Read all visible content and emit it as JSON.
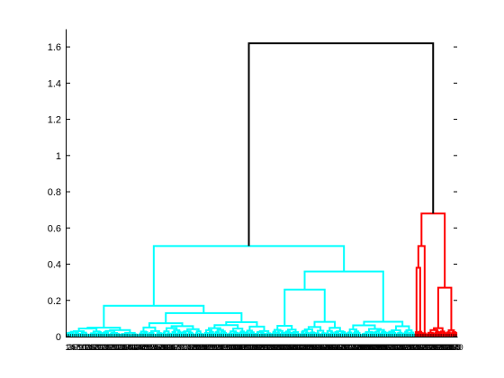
{
  "chart_data": {
    "type": "dendrogram",
    "title": "",
    "xlabel": "",
    "ylabel": "",
    "ylim": [
      0,
      1.7
    ],
    "yticks": [
      0,
      0.2,
      0.4,
      0.6,
      0.8,
      1,
      1.2,
      1.4,
      1.6
    ],
    "ytick_labels": [
      "0",
      "0.2",
      "0.4",
      "0.6",
      "0.8",
      "1",
      "1.2",
      "1.4",
      "1.6"
    ],
    "leaf_count": 240,
    "color_threshold": 0.7,
    "root_height": 1.62,
    "clusters": [
      {
        "color": "#00ffff",
        "leaf_range": [
          1,
          214
        ],
        "merge_height": 0.5,
        "notable_merges": [
          {
            "height": 0.5,
            "between_leaf_positions": [
              140,
              208
            ]
          },
          {
            "height": 0.36,
            "between_leaf_positions": [
              127,
              208
            ]
          },
          {
            "height": 0.35,
            "between_leaf_positions": [
              105,
              150
            ]
          },
          {
            "height": 0.27,
            "between_leaf_positions": [
              100,
              142
            ]
          },
          {
            "height": 0.26,
            "between_leaf_positions": [
              136,
              172
            ]
          },
          {
            "height": 0.24,
            "between_leaf_positions": [
              70,
              130
            ]
          },
          {
            "height": 0.23,
            "between_leaf_positions": [
              158,
              192
            ]
          },
          {
            "height": 0.17,
            "between_leaf_positions": [
              55,
              95
            ]
          },
          {
            "height": 0.13,
            "between_leaf_positions": [
              45,
              82
            ]
          },
          {
            "height": 0.11,
            "between_leaf_positions": [
              40,
              65
            ]
          },
          {
            "height": 0.07,
            "between_leaf_positions": [
              20,
              55
            ]
          },
          {
            "height": 0.05,
            "between_leaf_positions": [
              1,
              30
            ]
          }
        ]
      },
      {
        "color": "#ff0000",
        "leaf_range": [
          215,
          240
        ],
        "merge_height": 0.68,
        "notable_merges": [
          {
            "height": 0.68,
            "between_leaf_positions": [
              219,
              236
            ]
          },
          {
            "height": 0.5,
            "between_leaf_positions": [
              217,
              221
            ]
          },
          {
            "height": 0.38,
            "between_leaf_positions": [
              215,
              219
            ]
          },
          {
            "height": 0.27,
            "between_leaf_positions": [
              232,
              240
            ]
          }
        ]
      }
    ],
    "root_link": {
      "color": "#000000",
      "height": 1.62,
      "joins_cluster_heights": [
        0.5,
        0.68
      ]
    }
  }
}
